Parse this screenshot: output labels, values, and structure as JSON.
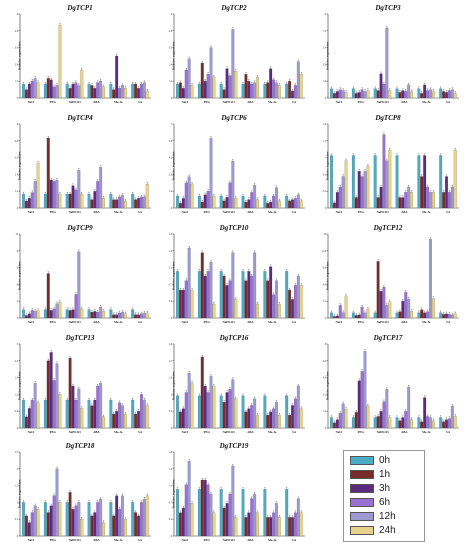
{
  "legend": {
    "items": [
      {
        "label": "0h",
        "color": "#4bacc6"
      },
      {
        "label": "1h",
        "color": "#772c2a"
      },
      {
        "label": "3h",
        "color": "#5c2a7e"
      },
      {
        "label": "6h",
        "color": "#9b6fd3"
      },
      {
        "label": "12h",
        "color": "#9d9ad2"
      },
      {
        "label": "24h",
        "color": "#e8d28b"
      }
    ]
  },
  "y_axis_label": "Relative expression",
  "chart_data": [
    {
      "type": "bar",
      "title": "DgTCP1",
      "categories": [
        "NaCl",
        "PEG",
        "NaHCO3",
        "ABA",
        "Me-Ja",
        "SA"
      ],
      "series": [
        {
          "name": "0h",
          "values": [
            1.0,
            1.0,
            1.0,
            1.0,
            1.0,
            1.0
          ]
        },
        {
          "name": "1h",
          "values": [
            0.6,
            1.4,
            0.7,
            0.9,
            0.6,
            1.0
          ]
        },
        {
          "name": "3h",
          "values": [
            1.0,
            1.3,
            1.0,
            0.7,
            3.0,
            0.7
          ]
        },
        {
          "name": "6h",
          "values": [
            1.2,
            0.8,
            1.1,
            1.1,
            0.7,
            1.0
          ]
        },
        {
          "name": "12h",
          "values": [
            1.4,
            0.9,
            0.9,
            1.2,
            0.9,
            1.1
          ]
        },
        {
          "name": "24h",
          "values": [
            1.1,
            5.2,
            2.0,
            0.8,
            0.7,
            0.5
          ]
        }
      ],
      "ylim": [
        0,
        6
      ]
    },
    {
      "type": "bar",
      "title": "DgTCP2",
      "categories": [
        "NaCl",
        "PEG",
        "NaHCO3",
        "ABA",
        "Me-Ja",
        "SA"
      ],
      "series": [
        {
          "name": "0h",
          "values": [
            1.0,
            1.0,
            1.0,
            1.0,
            1.0,
            1.0
          ]
        },
        {
          "name": "1h",
          "values": [
            1.1,
            2.5,
            0.6,
            1.7,
            1.1,
            1.2
          ]
        },
        {
          "name": "3h",
          "values": [
            0.7,
            1.2,
            2.1,
            1.2,
            2.1,
            0.5
          ]
        },
        {
          "name": "6h",
          "values": [
            2.0,
            1.7,
            1.6,
            1.0,
            1.3,
            0.9
          ]
        },
        {
          "name": "12h",
          "values": [
            2.8,
            3.6,
            4.9,
            1.1,
            1.1,
            2.6
          ]
        },
        {
          "name": "24h",
          "values": [
            0.9,
            1.5,
            1.9,
            1.5,
            0.9,
            1.7
          ]
        }
      ],
      "ylim": [
        0,
        6
      ]
    },
    {
      "type": "bar",
      "title": "DgTCP3",
      "categories": [
        "NaCl",
        "PEG",
        "NaHCO3",
        "ABA",
        "Me-Ja",
        "SA"
      ],
      "series": [
        {
          "name": "0h",
          "values": [
            1.0,
            1.0,
            1.0,
            1.0,
            1.0,
            1.0
          ]
        },
        {
          "name": "1h",
          "values": [
            0.5,
            0.5,
            0.8,
            0.6,
            0.5,
            0.7
          ]
        },
        {
          "name": "3h",
          "values": [
            0.7,
            0.6,
            2.6,
            0.8,
            1.4,
            0.6
          ]
        },
        {
          "name": "6h",
          "values": [
            0.9,
            0.9,
            1.5,
            0.7,
            0.8,
            0.8
          ]
        },
        {
          "name": "12h",
          "values": [
            0.8,
            0.7,
            7.5,
            1.4,
            0.9,
            0.9
          ]
        },
        {
          "name": "24h",
          "values": [
            0.6,
            0.8,
            0.8,
            0.7,
            0.7,
            0.5
          ]
        }
      ],
      "ylim": [
        0,
        9
      ]
    },
    {
      "type": "bar",
      "title": "DgTCP4",
      "categories": [
        "NaCl",
        "PEG",
        "NaHCO3",
        "ABA",
        "Me-Ja",
        "SA"
      ],
      "series": [
        {
          "name": "0h",
          "values": [
            1.0,
            1.0,
            1.0,
            1.0,
            1.0,
            1.0
          ]
        },
        {
          "name": "1h",
          "values": [
            0.5,
            5.0,
            1.0,
            0.6,
            0.6,
            0.6
          ]
        },
        {
          "name": "3h",
          "values": [
            0.7,
            2.0,
            1.6,
            1.2,
            0.6,
            0.7
          ]
        },
        {
          "name": "6h",
          "values": [
            1.1,
            1.9,
            1.3,
            1.9,
            0.8,
            0.8
          ]
        },
        {
          "name": "12h",
          "values": [
            1.9,
            2.0,
            2.7,
            2.9,
            0.9,
            0.8
          ]
        },
        {
          "name": "24h",
          "values": [
            3.2,
            1.0,
            1.0,
            0.7,
            0.5,
            1.7
          ]
        }
      ],
      "ylim": [
        0,
        6
      ]
    },
    {
      "type": "bar",
      "title": "DgTCP6",
      "categories": [
        "NaCl",
        "PEG",
        "NaHCO3",
        "ABA",
        "Me-Ja",
        "SA"
      ],
      "series": [
        {
          "name": "0h",
          "values": [
            1.0,
            1.0,
            1.0,
            1.0,
            1.0,
            1.0
          ]
        },
        {
          "name": "1h",
          "values": [
            0.4,
            0.5,
            0.6,
            0.5,
            0.4,
            0.6
          ]
        },
        {
          "name": "3h",
          "values": [
            0.8,
            1.1,
            0.9,
            0.7,
            0.5,
            0.7
          ]
        },
        {
          "name": "6h",
          "values": [
            2.1,
            1.4,
            2.1,
            1.3,
            1.0,
            0.8
          ]
        },
        {
          "name": "12h",
          "values": [
            2.6,
            5.8,
            3.9,
            1.9,
            1.7,
            1.1
          ]
        },
        {
          "name": "24h",
          "values": [
            2.0,
            1.0,
            0.8,
            0.7,
            0.6,
            0.6
          ]
        }
      ],
      "ylim": [
        0,
        7
      ]
    },
    {
      "type": "bar",
      "title": "DgTCP8",
      "categories": [
        "NaCl",
        "PEG",
        "NaHCO3",
        "ABA",
        "Me-Ja",
        "SA"
      ],
      "series": [
        {
          "name": "0h",
          "values": [
            1.0,
            1.0,
            1.0,
            1.0,
            1.0,
            1.0
          ]
        },
        {
          "name": "1h",
          "values": [
            0.1,
            0.2,
            0.2,
            0.2,
            0.6,
            0.3
          ]
        },
        {
          "name": "3h",
          "values": [
            0.3,
            0.7,
            0.4,
            0.2,
            1.0,
            0.6
          ]
        },
        {
          "name": "6h",
          "values": [
            0.4,
            0.6,
            1.4,
            0.3,
            0.4,
            0.3
          ]
        },
        {
          "name": "12h",
          "values": [
            0.6,
            0.7,
            0.9,
            0.4,
            0.3,
            0.4
          ]
        },
        {
          "name": "24h",
          "values": [
            0.9,
            0.8,
            1.1,
            0.3,
            0.3,
            1.1
          ]
        }
      ],
      "ylim": [
        0,
        1.6
      ]
    },
    {
      "type": "bar",
      "title": "DgTCP9",
      "categories": [
        "NaCl",
        "PEG",
        "NaHCO3",
        "ABA",
        "Me-Ja",
        "SA"
      ],
      "series": [
        {
          "name": "0h",
          "values": [
            1.0,
            1.0,
            1.0,
            1.0,
            1.0,
            1.0
          ]
        },
        {
          "name": "1h",
          "values": [
            0.3,
            5.3,
            0.9,
            0.7,
            0.4,
            0.4
          ]
        },
        {
          "name": "3h",
          "values": [
            0.5,
            0.9,
            1.0,
            0.8,
            0.4,
            0.4
          ]
        },
        {
          "name": "6h",
          "values": [
            0.9,
            1.1,
            2.8,
            0.7,
            0.6,
            0.5
          ]
        },
        {
          "name": "12h",
          "values": [
            0.8,
            1.7,
            7.9,
            1.3,
            0.7,
            0.6
          ]
        },
        {
          "name": "24h",
          "values": [
            0.9,
            1.9,
            1.1,
            0.8,
            0.5,
            0.6
          ]
        }
      ],
      "ylim": [
        0,
        10
      ]
    },
    {
      "type": "bar",
      "title": "DgTCP10",
      "categories": [
        "NaCl",
        "PEG",
        "NaHCO3",
        "ABA",
        "Me-Ja",
        "SA"
      ],
      "series": [
        {
          "name": "0h",
          "values": [
            1.0,
            1.0,
            1.0,
            1.0,
            1.0,
            1.0
          ]
        },
        {
          "name": "1h",
          "values": [
            0.6,
            1.4,
            0.9,
            0.8,
            0.8,
            0.6
          ]
        },
        {
          "name": "3h",
          "values": [
            0.6,
            0.9,
            0.7,
            1.0,
            1.1,
            0.4
          ]
        },
        {
          "name": "6h",
          "values": [
            0.8,
            1.0,
            0.8,
            0.9,
            0.5,
            0.7
          ]
        },
        {
          "name": "12h",
          "values": [
            1.5,
            1.2,
            1.4,
            1.4,
            0.8,
            0.9
          ]
        },
        {
          "name": "24h",
          "values": [
            0.6,
            0.3,
            0.4,
            0.3,
            0.3,
            0.7
          ]
        }
      ],
      "ylim": [
        0,
        1.8
      ]
    },
    {
      "type": "bar",
      "title": "DgTCP12",
      "categories": [
        "NaCl",
        "PEG",
        "NaHCO3",
        "ABA",
        "Me-Ja",
        "SA"
      ],
      "series": [
        {
          "name": "0h",
          "values": [
            1.0,
            1.0,
            1.0,
            1.0,
            1.0,
            1.0
          ]
        },
        {
          "name": "1h",
          "values": [
            0.3,
            0.5,
            10.8,
            1.2,
            1.6,
            0.7
          ]
        },
        {
          "name": "3h",
          "values": [
            0.4,
            0.6,
            5.1,
            3.2,
            1.0,
            0.8
          ]
        },
        {
          "name": "6h",
          "values": [
            2.4,
            2.1,
            5.9,
            4.9,
            1.2,
            0.7
          ]
        },
        {
          "name": "12h",
          "values": [
            1.0,
            1.0,
            2.4,
            3.6,
            15.0,
            0.6
          ]
        },
        {
          "name": "24h",
          "values": [
            4.2,
            1.7,
            3.1,
            1.3,
            3.7,
            0.8
          ]
        }
      ],
      "ylim": [
        0,
        16
      ]
    },
    {
      "type": "bar",
      "title": "DgTCP13",
      "categories": [
        "NaCl",
        "PEG",
        "NaHCO3",
        "ABA",
        "Me-Ja",
        "SA"
      ],
      "series": [
        {
          "name": "0h",
          "values": [
            1.0,
            1.0,
            1.0,
            1.0,
            1.0,
            1.0
          ]
        },
        {
          "name": "1h",
          "values": [
            0.4,
            2.4,
            2.5,
            0.8,
            0.5,
            0.5
          ]
        },
        {
          "name": "3h",
          "values": [
            0.7,
            2.7,
            1.5,
            1.0,
            0.6,
            0.6
          ]
        },
        {
          "name": "6h",
          "values": [
            1.0,
            1.7,
            1.0,
            1.5,
            0.9,
            1.2
          ]
        },
        {
          "name": "12h",
          "values": [
            1.6,
            2.3,
            1.4,
            1.6,
            0.8,
            1.0
          ]
        },
        {
          "name": "24h",
          "values": [
            0.9,
            1.2,
            0.7,
            0.4,
            0.5,
            0.8
          ]
        }
      ],
      "ylim": [
        0,
        3
      ]
    },
    {
      "type": "bar",
      "title": "DgTCP16",
      "categories": [
        "NaCl",
        "PEG",
        "NaHCO3",
        "ABA",
        "Me-Ja",
        "SA"
      ],
      "series": [
        {
          "name": "0h",
          "values": [
            1.0,
            1.0,
            1.0,
            1.0,
            1.0,
            1.0
          ]
        },
        {
          "name": "1h",
          "values": [
            0.5,
            2.2,
            0.8,
            0.5,
            0.4,
            0.4
          ]
        },
        {
          "name": "3h",
          "values": [
            0.6,
            1.3,
            1.1,
            0.6,
            0.5,
            0.7
          ]
        },
        {
          "name": "6h",
          "values": [
            1.1,
            1.1,
            1.2,
            0.7,
            0.6,
            0.9
          ]
        },
        {
          "name": "12h",
          "values": [
            1.7,
            1.6,
            1.5,
            0.9,
            0.8,
            1.3
          ]
        },
        {
          "name": "24h",
          "values": [
            1.4,
            1.3,
            0.9,
            0.4,
            0.4,
            0.6
          ]
        }
      ],
      "ylim": [
        0,
        2.6
      ]
    },
    {
      "type": "bar",
      "title": "DgTCP17",
      "categories": [
        "NaCl",
        "PEG",
        "NaHCO3",
        "ABA",
        "Me-Ja",
        "SA"
      ],
      "series": [
        {
          "name": "0h",
          "values": [
            1.0,
            1.0,
            1.0,
            1.0,
            1.0,
            1.0
          ]
        },
        {
          "name": "1h",
          "values": [
            0.5,
            1.5,
            1.1,
            0.7,
            0.6,
            0.6
          ]
        },
        {
          "name": "3h",
          "values": [
            0.8,
            4.5,
            1.6,
            1.0,
            2.9,
            0.8
          ]
        },
        {
          "name": "6h",
          "values": [
            1.4,
            5.4,
            2.5,
            1.6,
            1.1,
            0.9
          ]
        },
        {
          "name": "12h",
          "values": [
            2.3,
            7.3,
            3.7,
            3.9,
            1.0,
            2.1
          ]
        },
        {
          "name": "24h",
          "values": [
            1.8,
            2.1,
            1.0,
            0.8,
            0.7,
            1.1
          ]
        }
      ],
      "ylim": [
        0,
        8
      ]
    },
    {
      "type": "bar",
      "title": "DgTCP18",
      "categories": [
        "NaCl",
        "PEG",
        "NaHCO3",
        "ABA",
        "Me-Ja",
        "SA"
      ],
      "series": [
        {
          "name": "0h",
          "values": [
            1.0,
            1.0,
            1.0,
            1.0,
            1.0,
            1.0
          ]
        },
        {
          "name": "1h",
          "values": [
            0.6,
            0.7,
            1.3,
            0.6,
            0.6,
            0.7
          ]
        },
        {
          "name": "3h",
          "values": [
            0.4,
            0.9,
            0.8,
            0.7,
            1.2,
            0.6
          ]
        },
        {
          "name": "6h",
          "values": [
            0.7,
            1.2,
            0.9,
            1.0,
            0.8,
            1.0
          ]
        },
        {
          "name": "12h",
          "values": [
            0.9,
            2.0,
            1.0,
            1.1,
            1.2,
            1.1
          ]
        },
        {
          "name": "24h",
          "values": [
            0.8,
            1.0,
            0.5,
            0.4,
            0.5,
            1.2
          ]
        }
      ],
      "ylim": [
        0,
        2.5
      ]
    },
    {
      "type": "bar",
      "title": "DgTCP19",
      "categories": [
        "NaCl",
        "PEG",
        "NaHCO3",
        "ABA",
        "Me-Ja",
        "SA"
      ],
      "series": [
        {
          "name": "0h",
          "values": [
            1.0,
            1.0,
            1.0,
            1.0,
            1.0,
            1.0
          ]
        },
        {
          "name": "1h",
          "values": [
            0.5,
            1.2,
            0.6,
            0.4,
            0.4,
            0.4
          ]
        },
        {
          "name": "3h",
          "values": [
            0.6,
            1.2,
            0.7,
            0.5,
            0.4,
            0.4
          ]
        },
        {
          "name": "6h",
          "values": [
            1.1,
            1.1,
            0.9,
            0.8,
            0.5,
            0.5
          ]
        },
        {
          "name": "12h",
          "values": [
            1.6,
            0.9,
            1.5,
            0.9,
            0.7,
            0.8
          ]
        },
        {
          "name": "24h",
          "values": [
            0.7,
            0.5,
            0.4,
            0.5,
            0.4,
            0.5
          ]
        }
      ],
      "ylim": [
        0,
        1.8
      ]
    }
  ]
}
